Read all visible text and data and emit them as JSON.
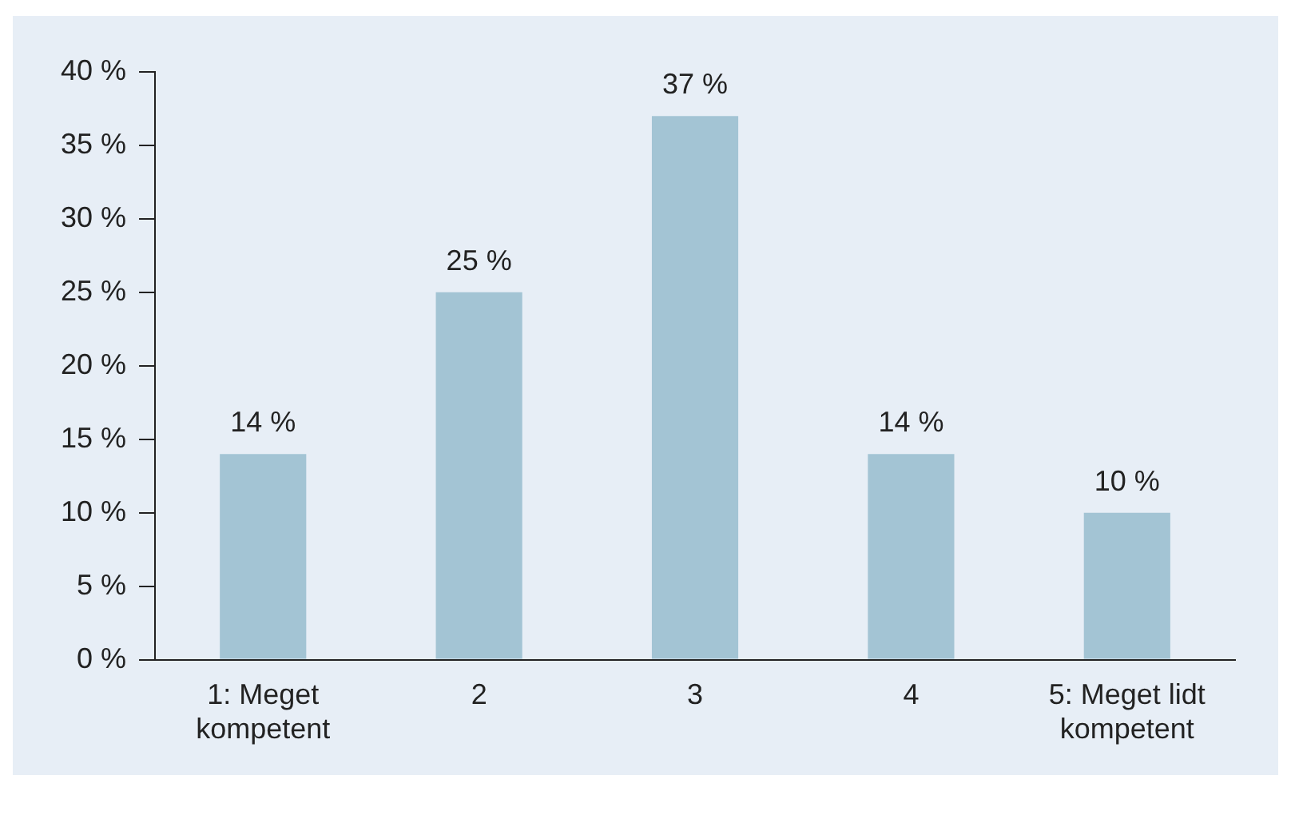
{
  "chart_data": {
    "type": "bar",
    "categories": [
      "1: Meget kompetent",
      "2",
      "3",
      "4",
      "5: Meget lidt kompetent"
    ],
    "values": [
      14,
      25,
      37,
      14,
      10
    ],
    "value_labels": [
      "14 %",
      "25 %",
      "37 %",
      "14 %",
      "10 %"
    ],
    "color": "#a3c4d4",
    "ylim": [
      0,
      40
    ],
    "yticks": [
      {
        "value": 0,
        "label": "0 %"
      },
      {
        "value": 5,
        "label": "5 %"
      },
      {
        "value": 10,
        "label": "10 %"
      },
      {
        "value": 15,
        "label": "15 %"
      },
      {
        "value": 20,
        "label": "20 %"
      },
      {
        "value": 25,
        "label": "25 %"
      },
      {
        "value": 30,
        "label": "30 %"
      },
      {
        "value": 35,
        "label": "35 %"
      },
      {
        "value": 40,
        "label": "40 %"
      }
    ],
    "grid": false,
    "legend": false
  }
}
